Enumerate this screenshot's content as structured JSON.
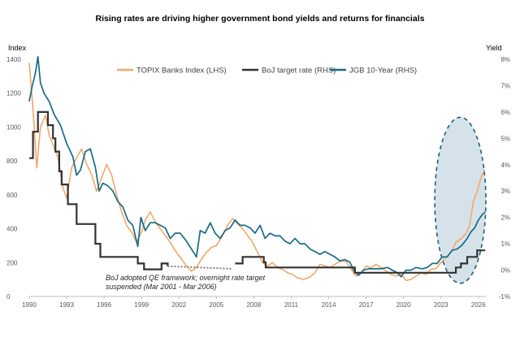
{
  "chart_data": {
    "type": "line",
    "title": "Rising rates are driving higher government bond yields and returns for financials",
    "y_left_label": "Index",
    "y_right_label": "Yield",
    "x_ticks": [
      "1990",
      "1993",
      "1996",
      "1999",
      "2002",
      "2005",
      "2008",
      "2011",
      "2014",
      "2017",
      "2020",
      "2023",
      "2026"
    ],
    "x_range": [
      1990,
      2026.6
    ],
    "y_left_ticks": [
      "0",
      "200",
      "400",
      "600",
      "800",
      "1000",
      "1200",
      "1400"
    ],
    "y_left_range": [
      0,
      1400
    ],
    "y_right_ticks": [
      "-1%",
      "0%",
      "1%",
      "2%",
      "3%",
      "4%",
      "5%",
      "6%",
      "7%",
      "8%"
    ],
    "y_right_range": [
      -1,
      8
    ],
    "grid": false,
    "legend_position": "top",
    "annotation": [
      "BoJ adopted QE framework; overnight rate target",
      "suspended (Mar 2001 - Mar 2006)"
    ],
    "highlight": {
      "type": "ellipse",
      "x_range": [
        2022.5,
        2026.6
      ],
      "y_right_range": [
        -0.5,
        5.8
      ],
      "color": "#d6e2ea"
    },
    "series": [
      {
        "name": "TOPIX Banks Index (LHS)",
        "axis": "left",
        "color": "#f0a868",
        "points": [
          [
            1990.0,
            1380
          ],
          [
            1990.3,
            1110
          ],
          [
            1990.6,
            760
          ],
          [
            1990.9,
            1000
          ],
          [
            1991.3,
            1070
          ],
          [
            1991.6,
            950
          ],
          [
            1992.0,
            880
          ],
          [
            1992.3,
            820
          ],
          [
            1992.7,
            640
          ],
          [
            1993.0,
            580
          ],
          [
            1993.4,
            760
          ],
          [
            1993.8,
            820
          ],
          [
            1994.2,
            870
          ],
          [
            1994.6,
            780
          ],
          [
            1995.0,
            720
          ],
          [
            1995.4,
            620
          ],
          [
            1995.8,
            700
          ],
          [
            1996.2,
            780
          ],
          [
            1996.6,
            720
          ],
          [
            1997.0,
            600
          ],
          [
            1997.4,
            500
          ],
          [
            1997.8,
            420
          ],
          [
            1998.2,
            380
          ],
          [
            1998.6,
            320
          ],
          [
            1999.0,
            380
          ],
          [
            1999.3,
            450
          ],
          [
            1999.7,
            500
          ],
          [
            2000.1,
            440
          ],
          [
            2000.5,
            400
          ],
          [
            2000.9,
            360
          ],
          [
            2001.3,
            320
          ],
          [
            2001.7,
            270
          ],
          [
            2002.1,
            230
          ],
          [
            2002.6,
            180
          ],
          [
            2003.0,
            150
          ],
          [
            2003.4,
            170
          ],
          [
            2003.8,
            220
          ],
          [
            2004.2,
            260
          ],
          [
            2004.6,
            290
          ],
          [
            2005.0,
            300
          ],
          [
            2005.5,
            360
          ],
          [
            2005.9,
            420
          ],
          [
            2006.3,
            460
          ],
          [
            2006.7,
            430
          ],
          [
            2007.1,
            400
          ],
          [
            2007.5,
            360
          ],
          [
            2007.9,
            320
          ],
          [
            2008.3,
            260
          ],
          [
            2008.7,
            200
          ],
          [
            2009.1,
            180
          ],
          [
            2009.5,
            200
          ],
          [
            2009.9,
            170
          ],
          [
            2010.3,
            160
          ],
          [
            2010.7,
            140
          ],
          [
            2011.1,
            130
          ],
          [
            2011.5,
            110
          ],
          [
            2012.0,
            100
          ],
          [
            2012.5,
            115
          ],
          [
            2012.9,
            140
          ],
          [
            2013.3,
            190
          ],
          [
            2013.7,
            180
          ],
          [
            2014.1,
            170
          ],
          [
            2014.5,
            190
          ],
          [
            2015.0,
            210
          ],
          [
            2015.4,
            205
          ],
          [
            2015.8,
            160
          ],
          [
            2016.2,
            120
          ],
          [
            2016.6,
            140
          ],
          [
            2017.0,
            180
          ],
          [
            2017.4,
            170
          ],
          [
            2017.8,
            190
          ],
          [
            2018.2,
            170
          ],
          [
            2018.6,
            150
          ],
          [
            2019.0,
            130
          ],
          [
            2019.4,
            120
          ],
          [
            2019.8,
            130
          ],
          [
            2020.2,
            95
          ],
          [
            2020.6,
            100
          ],
          [
            2021.0,
            120
          ],
          [
            2021.4,
            140
          ],
          [
            2021.8,
            130
          ],
          [
            2022.2,
            160
          ],
          [
            2022.6,
            165
          ],
          [
            2023.0,
            200
          ],
          [
            2023.4,
            230
          ],
          [
            2023.8,
            260
          ],
          [
            2024.2,
            320
          ],
          [
            2024.6,
            340
          ],
          [
            2025.0,
            370
          ],
          [
            2025.3,
            420
          ],
          [
            2025.6,
            560
          ],
          [
            2025.9,
            620
          ],
          [
            2026.2,
            700
          ],
          [
            2026.5,
            750
          ]
        ]
      },
      {
        "name": "BoJ target rate (RHS)",
        "axis": "right",
        "color": "#333333",
        "steps": [
          [
            1990.0,
            4.25
          ],
          [
            1990.3,
            5.25
          ],
          [
            1990.7,
            6.0
          ],
          [
            1991.5,
            5.5
          ],
          [
            1991.9,
            5.0
          ],
          [
            1992.1,
            4.5
          ],
          [
            1992.4,
            3.75
          ],
          [
            1992.6,
            3.25
          ],
          [
            1993.1,
            2.5
          ],
          [
            1993.8,
            1.75
          ],
          [
            1995.3,
            1.0
          ],
          [
            1995.7,
            0.5
          ],
          [
            1998.7,
            0.25
          ],
          [
            1999.2,
            0.03
          ],
          [
            2000.6,
            0.25
          ],
          [
            2001.1,
            0.15
          ]
        ],
        "steps_after_gap": [
          [
            2006.5,
            0.25
          ],
          [
            2007.1,
            0.5
          ],
          [
            2008.8,
            0.3
          ],
          [
            2008.95,
            0.1
          ],
          [
            2016.1,
            -0.1
          ],
          [
            2024.2,
            0.1
          ],
          [
            2024.6,
            0.25
          ],
          [
            2025.1,
            0.5
          ],
          [
            2025.9,
            0.75
          ],
          [
            2026.55,
            0.75
          ]
        ],
        "dotted_gap": [
          [
            2001.1,
            0.15
          ],
          [
            2006.2,
            0.05
          ]
        ]
      },
      {
        "name": "JGB 10-Year (RHS)",
        "axis": "right",
        "color": "#176b87",
        "points": [
          [
            1990.0,
            6.4
          ],
          [
            1990.2,
            6.9
          ],
          [
            1990.5,
            7.5
          ],
          [
            1990.7,
            8.1
          ],
          [
            1990.9,
            7.1
          ],
          [
            1991.2,
            6.7
          ],
          [
            1991.6,
            6.4
          ],
          [
            1992.0,
            5.9
          ],
          [
            1992.5,
            5.5
          ],
          [
            1993.0,
            4.8
          ],
          [
            1993.5,
            4.3
          ],
          [
            1993.8,
            3.6
          ],
          [
            1994.1,
            3.8
          ],
          [
            1994.5,
            4.5
          ],
          [
            1994.9,
            4.6
          ],
          [
            1995.3,
            3.9
          ],
          [
            1995.6,
            3.0
          ],
          [
            1995.9,
            3.3
          ],
          [
            1996.3,
            3.2
          ],
          [
            1996.7,
            3.0
          ],
          [
            1997.1,
            2.6
          ],
          [
            1997.5,
            2.4
          ],
          [
            1997.9,
            1.9
          ],
          [
            1998.3,
            1.7
          ],
          [
            1998.7,
            0.9
          ],
          [
            1998.95,
            2.0
          ],
          [
            1999.3,
            1.5
          ],
          [
            1999.7,
            1.8
          ],
          [
            2000.1,
            1.8
          ],
          [
            2000.5,
            1.7
          ],
          [
            2000.9,
            1.6
          ],
          [
            2001.3,
            1.2
          ],
          [
            2001.7,
            1.4
          ],
          [
            2002.1,
            1.4
          ],
          [
            2002.6,
            1.1
          ],
          [
            2003.0,
            0.8
          ],
          [
            2003.4,
            0.5
          ],
          [
            2003.7,
            1.5
          ],
          [
            2004.1,
            1.4
          ],
          [
            2004.5,
            1.8
          ],
          [
            2004.9,
            1.4
          ],
          [
            2005.3,
            1.2
          ],
          [
            2005.7,
            1.5
          ],
          [
            2006.1,
            1.6
          ],
          [
            2006.5,
            1.9
          ],
          [
            2006.9,
            1.7
          ],
          [
            2007.3,
            1.7
          ],
          [
            2007.7,
            1.6
          ],
          [
            2008.1,
            1.4
          ],
          [
            2008.5,
            1.7
          ],
          [
            2008.9,
            1.2
          ],
          [
            2009.3,
            1.4
          ],
          [
            2009.7,
            1.3
          ],
          [
            2010.1,
            1.3
          ],
          [
            2010.5,
            1.1
          ],
          [
            2010.9,
            1.0
          ],
          [
            2011.3,
            1.2
          ],
          [
            2011.7,
            1.0
          ],
          [
            2012.1,
            1.0
          ],
          [
            2012.5,
            0.8
          ],
          [
            2012.9,
            0.7
          ],
          [
            2013.3,
            0.6
          ],
          [
            2013.7,
            0.7
          ],
          [
            2014.1,
            0.6
          ],
          [
            2014.5,
            0.5
          ],
          [
            2014.9,
            0.35
          ],
          [
            2015.3,
            0.4
          ],
          [
            2015.7,
            0.3
          ],
          [
            2016.0,
            0.0
          ],
          [
            2016.4,
            -0.2
          ],
          [
            2016.8,
            0.0
          ],
          [
            2017.2,
            0.05
          ],
          [
            2017.7,
            0.05
          ],
          [
            2018.2,
            0.05
          ],
          [
            2018.7,
            0.1
          ],
          [
            2019.1,
            0.0
          ],
          [
            2019.5,
            -0.1
          ],
          [
            2019.8,
            -0.25
          ],
          [
            2020.2,
            0.0
          ],
          [
            2020.6,
            0.0
          ],
          [
            2021.0,
            0.1
          ],
          [
            2021.5,
            0.05
          ],
          [
            2021.9,
            0.1
          ],
          [
            2022.3,
            0.25
          ],
          [
            2022.7,
            0.25
          ],
          [
            2023.1,
            0.5
          ],
          [
            2023.5,
            0.5
          ],
          [
            2023.9,
            0.75
          ],
          [
            2024.3,
            0.8
          ],
          [
            2024.7,
            0.95
          ],
          [
            2025.1,
            1.2
          ],
          [
            2025.4,
            1.45
          ],
          [
            2025.7,
            1.6
          ],
          [
            2026.0,
            1.9
          ],
          [
            2026.3,
            2.1
          ],
          [
            2026.55,
            2.2
          ]
        ]
      }
    ]
  }
}
